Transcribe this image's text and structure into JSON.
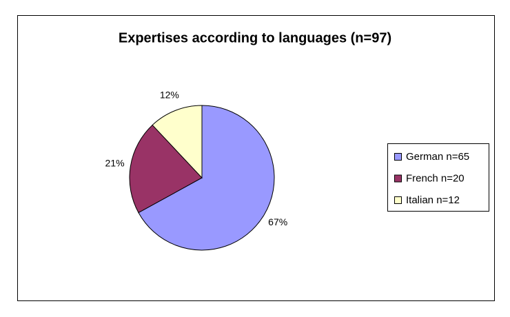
{
  "chart_data": {
    "type": "pie",
    "title": "Expertises according to languages (n=97)",
    "categories": [
      "German n=65",
      "French n=20",
      "Italian n=12"
    ],
    "values": [
      67,
      21,
      12
    ],
    "value_labels": [
      "67%",
      "21%",
      "12%"
    ],
    "colors": [
      "#9999ff",
      "#993366",
      "#ffffcc"
    ],
    "legend": "right"
  }
}
